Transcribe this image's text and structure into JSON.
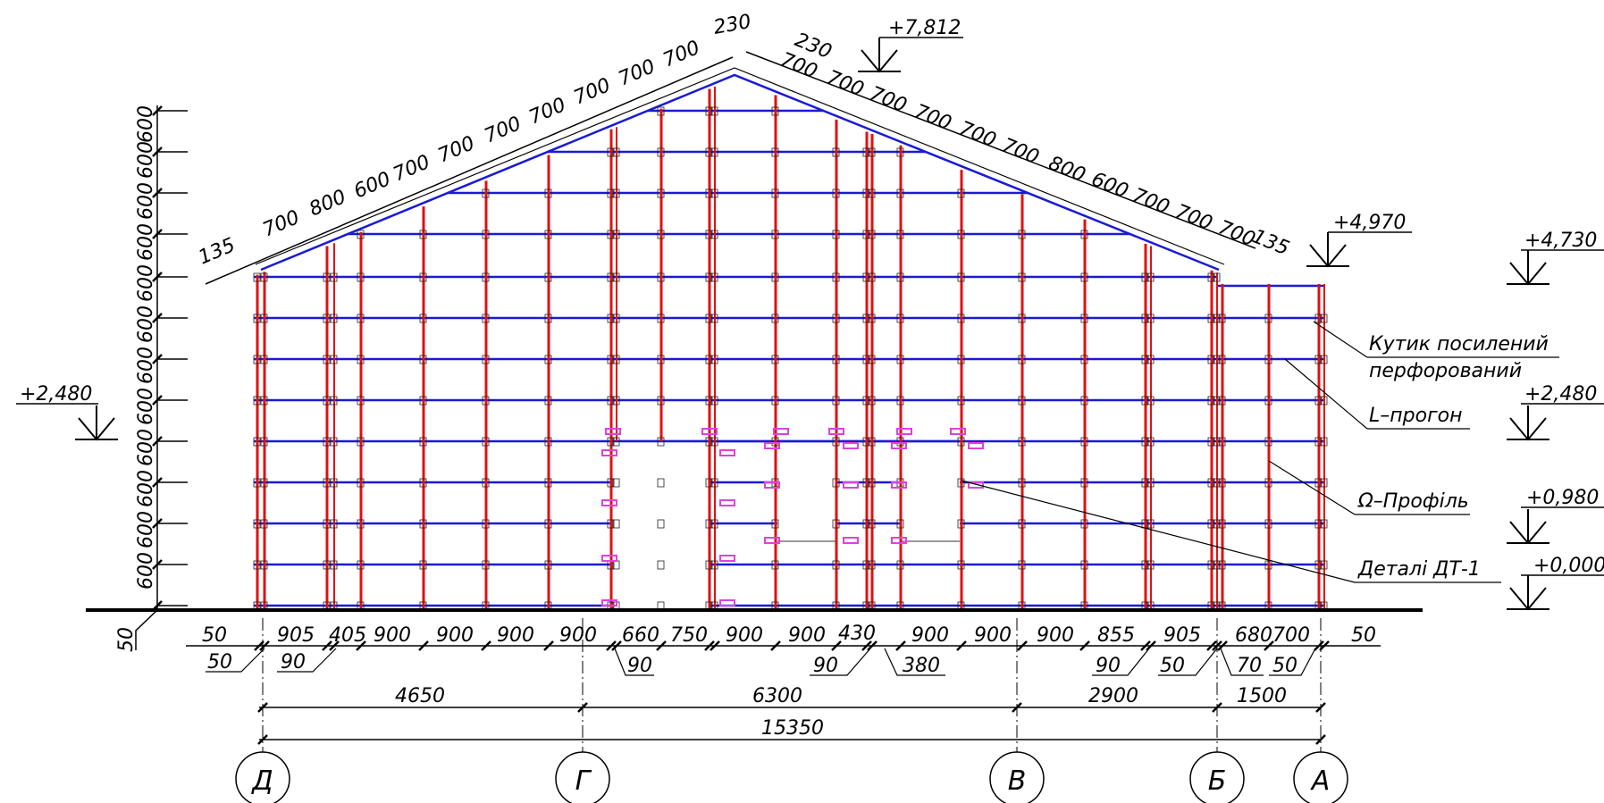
{
  "colors": {
    "purlin": "#1a1ad6",
    "post": "#e01010",
    "detail": "#e040e0",
    "line": "#000000",
    "background": "#ffffff"
  },
  "roof": {
    "left_slope_dims": [
      "135",
      "700",
      "800",
      "600",
      "700",
      "700",
      "700",
      "700",
      "700",
      "700",
      "700"
    ],
    "ridge_dims": [
      "230",
      "230"
    ],
    "right_slope_dims": [
      "700",
      "700",
      "700",
      "700",
      "700",
      "700",
      "800",
      "600",
      "700",
      "700",
      "700",
      "135"
    ]
  },
  "left_column": {
    "spacings": [
      "600",
      "600",
      "600",
      "600",
      "600",
      "600",
      "600",
      "600",
      "600",
      "600",
      "600",
      "600"
    ],
    "base": "50"
  },
  "levels": [
    {
      "id": "ridge",
      "value": "+7,812"
    },
    {
      "id": "eave-right",
      "value": "+4,970"
    },
    {
      "id": "eave-annex",
      "value": "+4,730"
    },
    {
      "id": "left-opening",
      "value": "+2,480"
    },
    {
      "id": "right-opening",
      "value": "+2,480"
    },
    {
      "id": "window-sill",
      "value": "+0,980"
    },
    {
      "id": "zero",
      "value": "+0,000"
    }
  ],
  "callouts": [
    {
      "id": "kutyk",
      "text": "Кутик посилений"
    },
    {
      "id": "kutyk-2",
      "text": "перфорований"
    },
    {
      "id": "l-progon",
      "text": "L–прогон"
    },
    {
      "id": "omega",
      "text": "Ω–Профіль"
    },
    {
      "id": "details",
      "text": "Деталі ДТ-1"
    }
  ],
  "bottom": {
    "row1": [
      "50",
      "905",
      "405",
      "900",
      "900",
      "900",
      "900",
      "660",
      "750",
      "900",
      "900",
      "430",
      "900",
      "900",
      "900",
      "855",
      "905",
      "680",
      "700",
      "50"
    ],
    "row2": [
      "50",
      "90",
      "90",
      "90",
      "380",
      "90",
      "50",
      "70",
      "50"
    ],
    "spans": [
      "4650",
      "6300",
      "2900",
      "1500"
    ],
    "total": "15350"
  },
  "axes": [
    "Д",
    "Г",
    "В",
    "Б",
    "А"
  ]
}
